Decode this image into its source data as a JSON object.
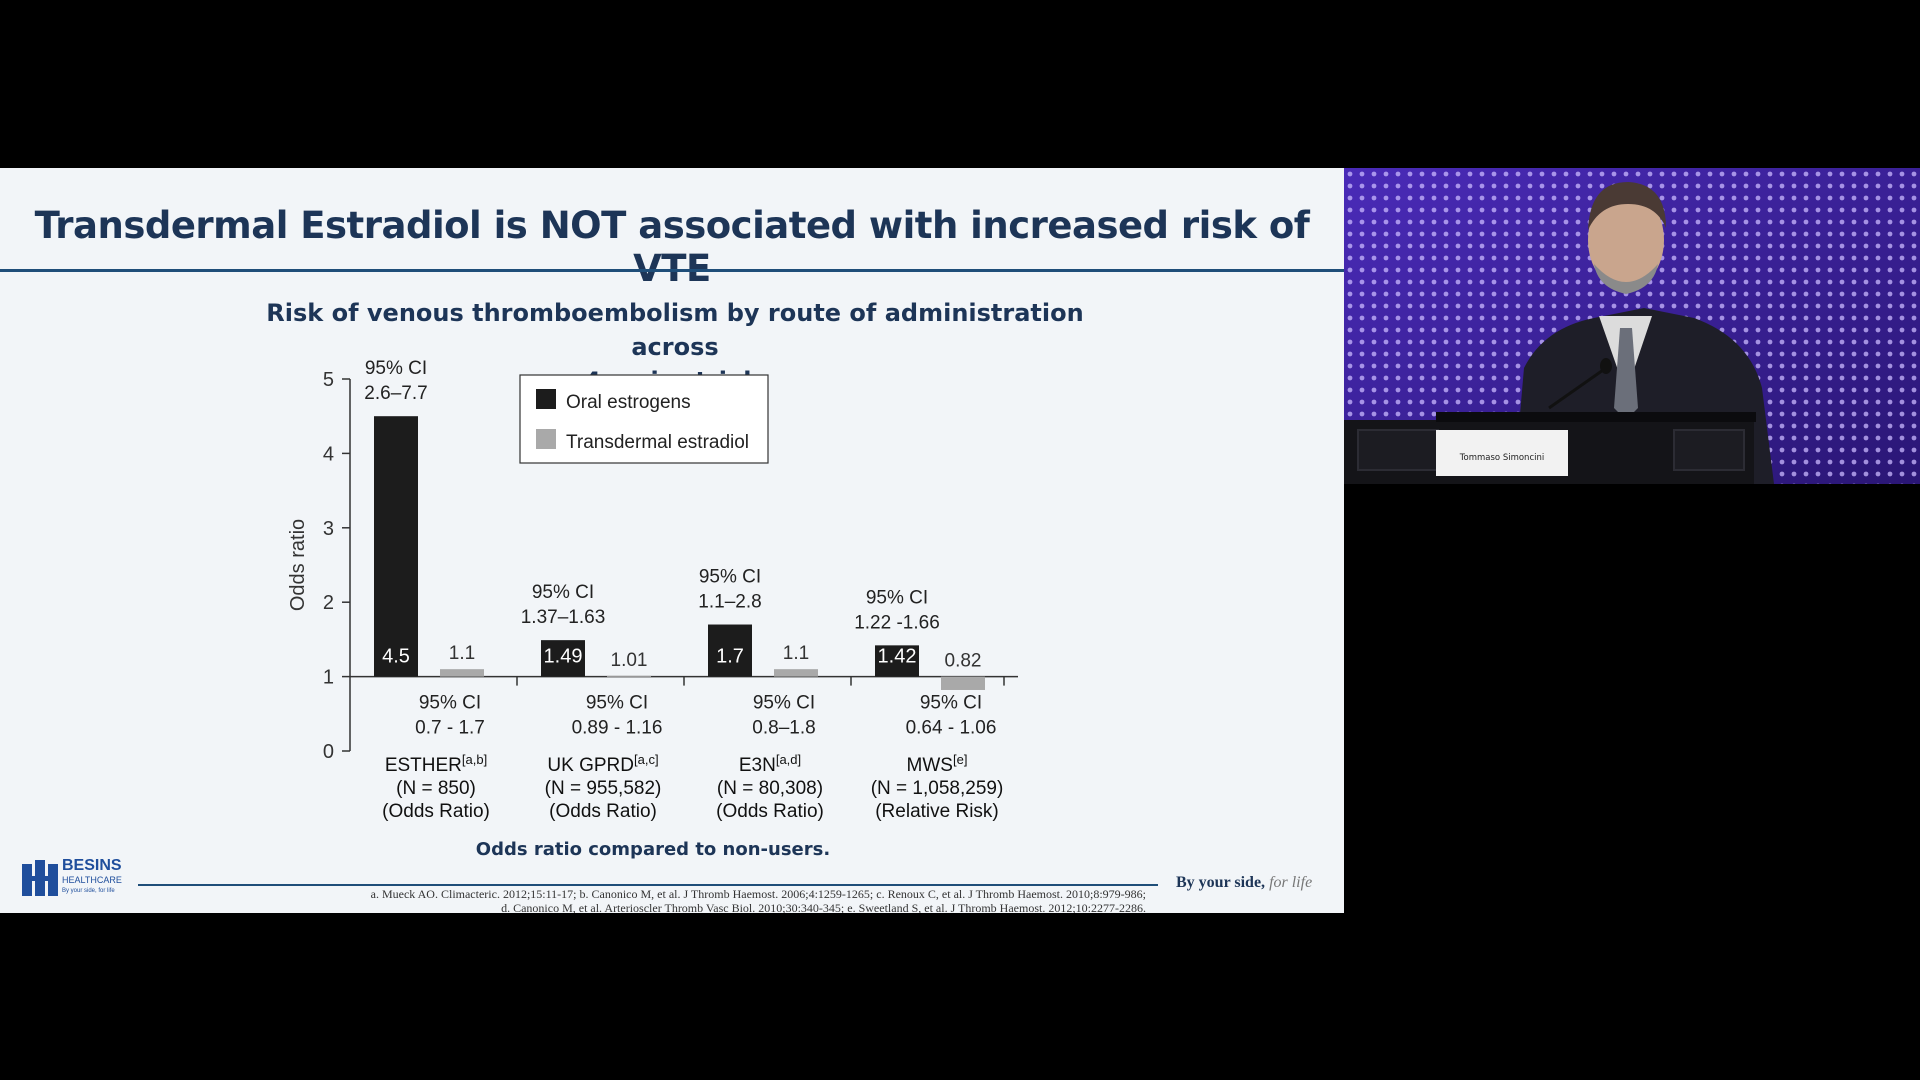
{
  "slide": {
    "title": "Transdermal Estradiol is NOT associated with increased risk of VTE",
    "chart_title_line1": "Risk of venous thromboembolism by route of administration across",
    "chart_title_line2": "4 major trials",
    "footer_caption": "Odds ratio compared to non-users.",
    "references_line1": "a. Mueck AO. Climacteric. 2012;15:11-17; b. Canonico M, et al. J Thromb Haemost. 2006;4:1259-1265; c. Renoux C, et al. J Thromb Haemost. 2010;8:979-986;",
    "references_line2": "d. Canonico M, et al. Arterioscler Thromb Vasc Biol. 2010;30:340-345; e. Sweetland S, et al. J Thromb Haemost. 2012;10:2277-2286.",
    "logo_name": "BESINS",
    "logo_sub": "HEALTHCARE",
    "logo_tag": "By your side, for life",
    "tagline_main": "By your side,",
    "tagline_script": "for life"
  },
  "speaker": {
    "name_plate": "Tommaso Simoncini"
  },
  "colors": {
    "oral": "#1c1c1c",
    "transdermal": "#a9a9a9",
    "title": "#1d3557",
    "video_bg": "#3a1f9a"
  },
  "chart_data": {
    "type": "bar",
    "ylabel": "Odds ratio",
    "ylim": [
      0,
      5
    ],
    "yticks": [
      0,
      1,
      2,
      3,
      4,
      5
    ],
    "baseline": 1,
    "legend": {
      "placement": "top-center",
      "entries": [
        "Oral estrogens",
        "Transdermal estradiol"
      ]
    },
    "groups": [
      {
        "name": "ESTHER",
        "superscript": "[a,b]",
        "n": "(N = 850)",
        "measure": "(Odds Ratio)",
        "oral": {
          "value": 4.5,
          "label": "4.5",
          "ci_line1": "95% CI",
          "ci_line2": "2.6–7.7"
        },
        "transdermal": {
          "value": 1.1,
          "label": "1.1",
          "ci_line1": "95% CI",
          "ci_line2": "0.7 - 1.7"
        }
      },
      {
        "name": "UK GPRD",
        "superscript": "[a,c]",
        "n": "(N = 955,582)",
        "measure": "(Odds Ratio)",
        "oral": {
          "value": 1.49,
          "label": "1.49",
          "ci_line1": "95% CI",
          "ci_line2": "1.37–1.63"
        },
        "transdermal": {
          "value": 1.01,
          "label": "1.01",
          "ci_line1": "95% CI",
          "ci_line2": "0.89 - 1.16"
        }
      },
      {
        "name": "E3N",
        "superscript": "[a,d]",
        "n": "(N = 80,308)",
        "measure": "(Odds Ratio)",
        "oral": {
          "value": 1.7,
          "label": "1.7",
          "ci_line1": "95% CI",
          "ci_line2": "1.1–2.8"
        },
        "transdermal": {
          "value": 1.1,
          "label": "1.1",
          "ci_line1": "95% CI",
          "ci_line2": "0.8–1.8"
        }
      },
      {
        "name": "MWS",
        "superscript": "[e]",
        "n": "(N = 1,058,259)",
        "measure": "(Relative Risk)",
        "oral": {
          "value": 1.42,
          "label": "1.42",
          "ci_line1": "95% CI",
          "ci_line2": "1.22 -1.66"
        },
        "transdermal": {
          "value": 0.82,
          "label": "0.82",
          "ci_line1": "95% CI",
          "ci_line2": "0.64 - 1.06"
        }
      }
    ]
  }
}
